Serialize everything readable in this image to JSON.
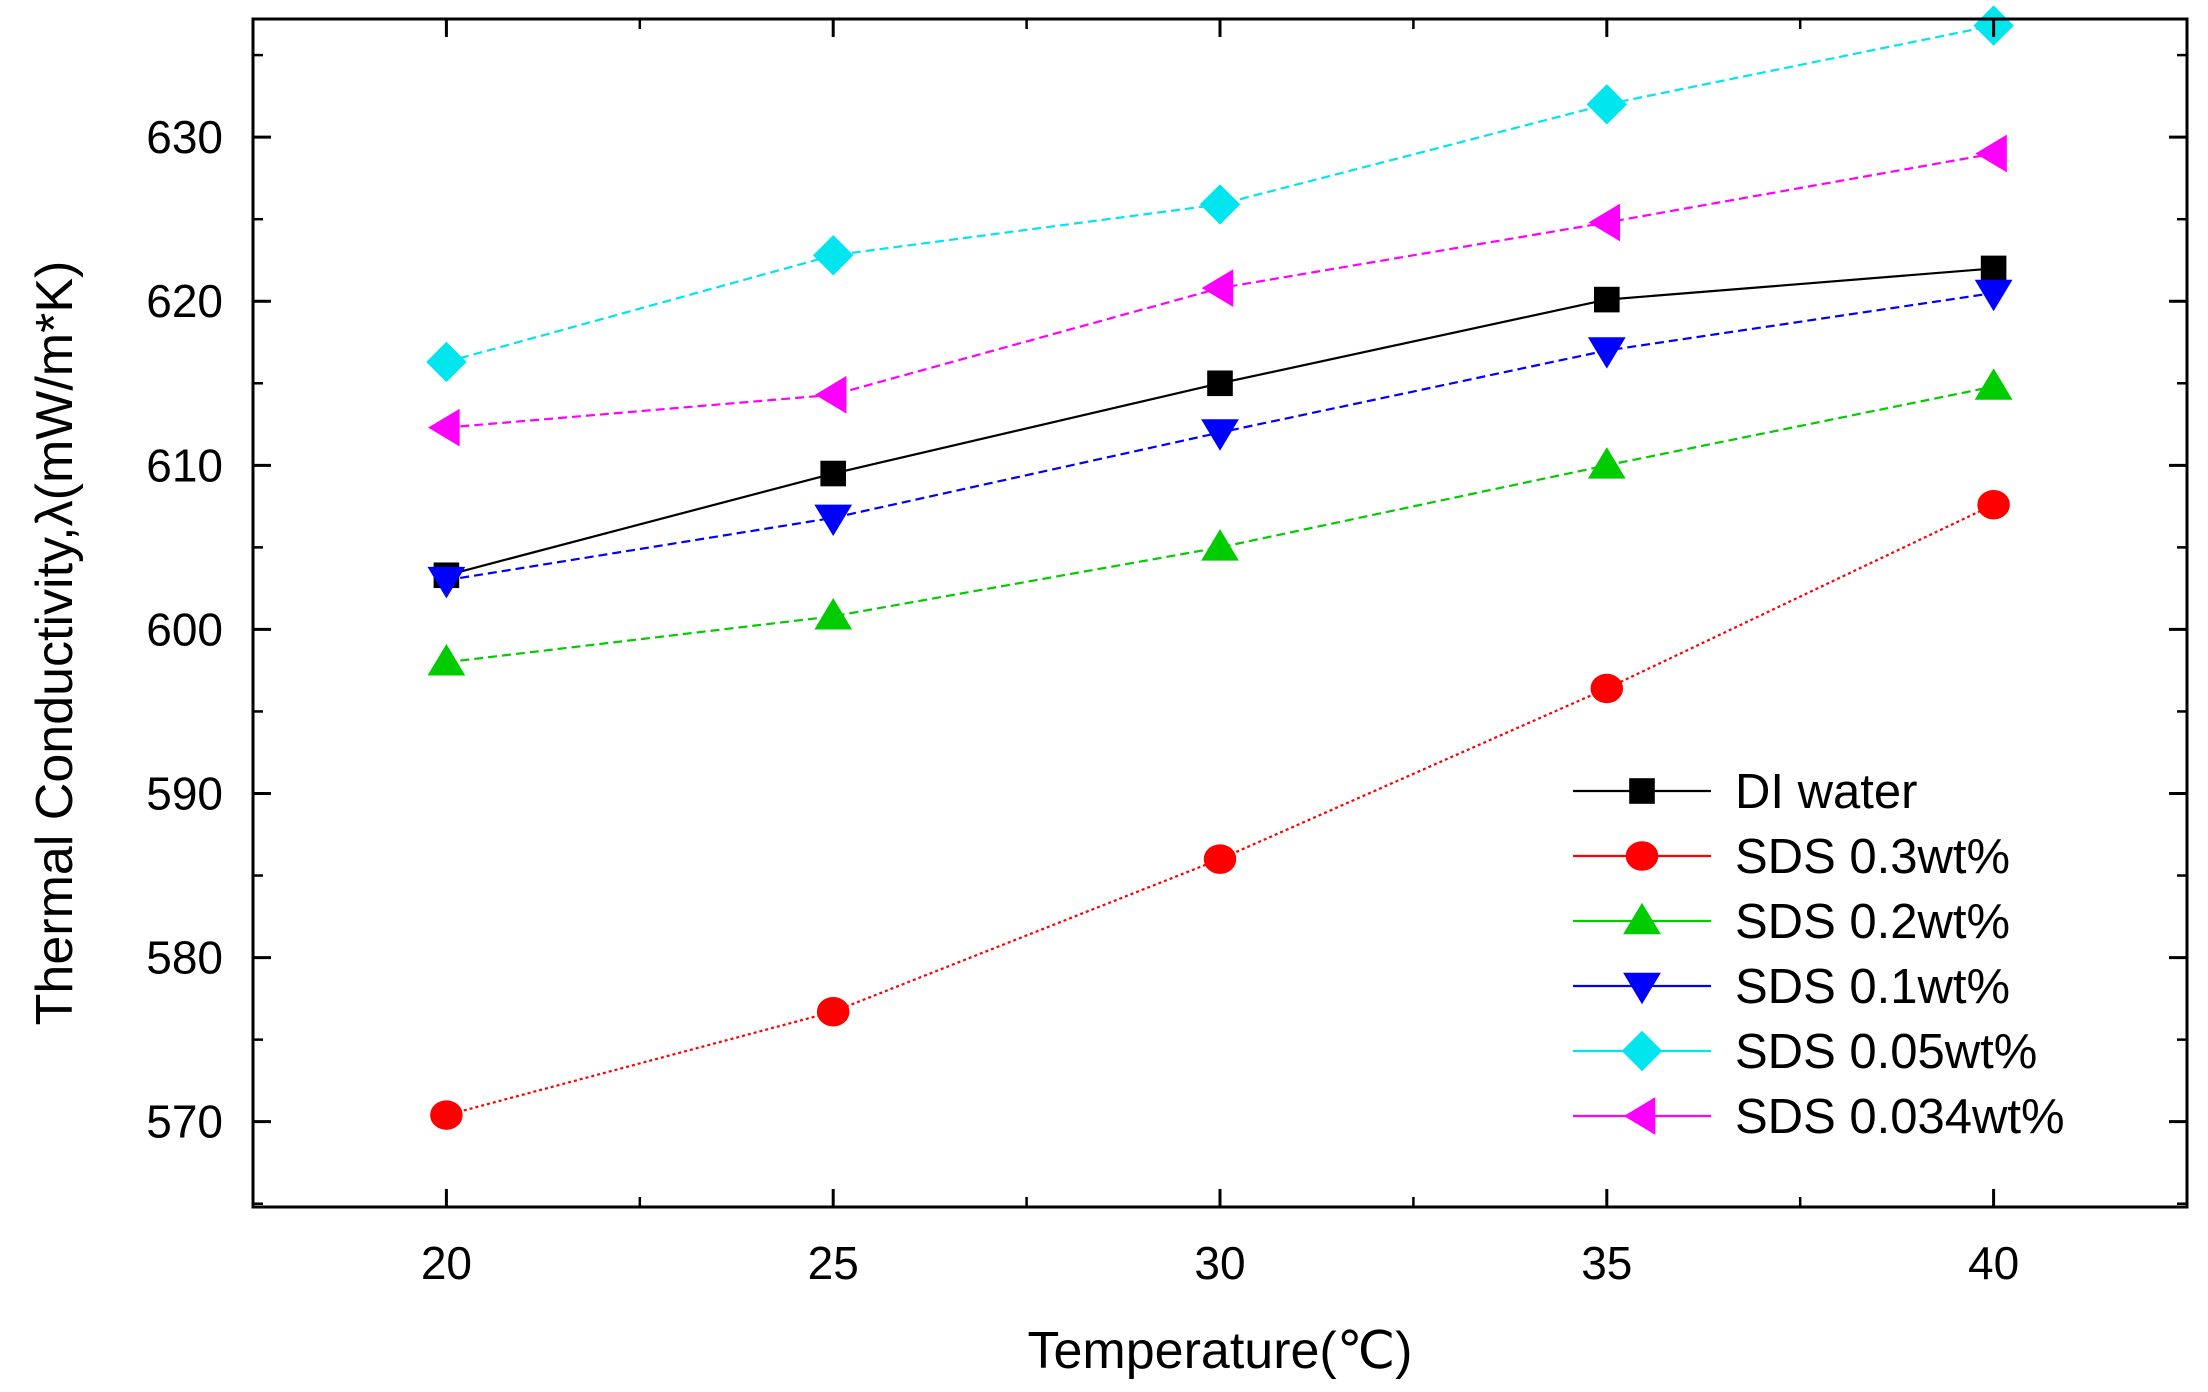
{
  "chart_data": {
    "type": "line",
    "title": "",
    "xlabel": "Temperature(℃)",
    "ylabel": "Thermal Conductivity,λ(mW/m*K)",
    "x": [
      20,
      25,
      30,
      35,
      40
    ],
    "xlim": [
      17.5,
      42.5
    ],
    "ylim": [
      564.8,
      637.2
    ],
    "xticks": [
      20,
      25,
      30,
      35,
      40
    ],
    "yticks": [
      570,
      580,
      590,
      600,
      610,
      620,
      630
    ],
    "xtick_labels": [
      "20",
      "25",
      "30",
      "35",
      "40"
    ],
    "ytick_labels": [
      "570",
      "580",
      "590",
      "600",
      "610",
      "620",
      "630"
    ],
    "grid": false,
    "legend_position": "bottom-right",
    "series": [
      {
        "name": "DI water",
        "values": [
          603.3,
          609.5,
          615.0,
          620.1,
          622.0
        ],
        "color": "#000000",
        "marker": "square",
        "dash": "solid"
      },
      {
        "name": "SDS 0.3wt%",
        "values": [
          570.4,
          576.7,
          586.0,
          596.4,
          607.6
        ],
        "color": "#ff0000",
        "marker": "circle",
        "dash": "dotted"
      },
      {
        "name": "SDS 0.2wt%",
        "values": [
          598.0,
          600.8,
          605.0,
          610.0,
          614.8
        ],
        "color": "#00cc00",
        "marker": "triangle-up",
        "dash": "dashed"
      },
      {
        "name": "SDS 0.1wt%",
        "values": [
          603.0,
          606.8,
          612.0,
          617.0,
          620.5
        ],
        "color": "#0000ff",
        "marker": "triangle-down",
        "dash": "dashed"
      },
      {
        "name": "SDS 0.05wt%",
        "values": [
          616.3,
          622.8,
          625.9,
          632.0,
          636.8
        ],
        "color": "#00e5ee",
        "marker": "diamond",
        "dash": "dashed"
      },
      {
        "name": "SDS 0.034wt%",
        "values": [
          612.3,
          614.3,
          620.8,
          624.8,
          629.0
        ],
        "color": "#ff00ff",
        "marker": "triangle-left",
        "dash": "dashed"
      }
    ]
  }
}
